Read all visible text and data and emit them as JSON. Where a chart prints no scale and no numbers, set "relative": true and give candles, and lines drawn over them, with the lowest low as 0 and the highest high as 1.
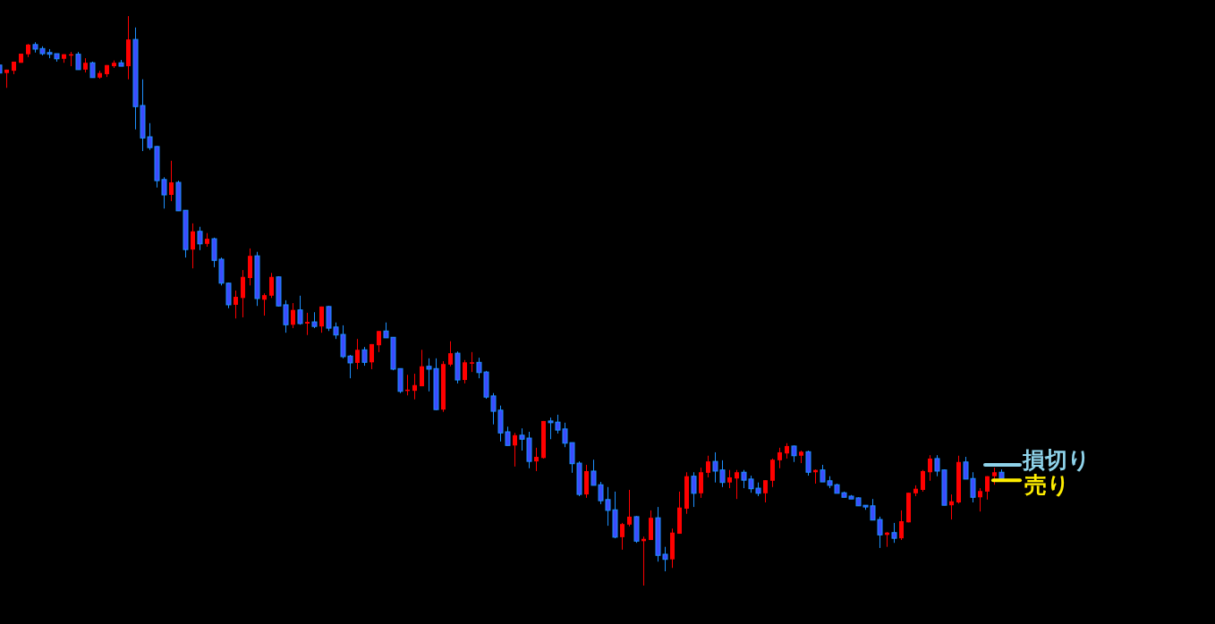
{
  "chart_data": {
    "type": "candlestick",
    "relative": true,
    "categories": [
      null,
      null,
      null,
      null,
      null,
      null,
      null,
      null,
      null,
      null,
      null,
      null,
      null,
      null,
      null,
      null,
      null,
      null,
      null,
      null,
      null,
      null,
      null,
      null,
      null,
      null,
      null,
      null,
      null,
      null,
      null,
      null,
      null,
      null,
      null,
      null,
      null,
      null,
      null,
      null,
      null,
      null,
      null,
      null,
      null,
      null,
      null,
      null,
      null,
      null,
      null,
      null,
      null,
      null,
      null,
      null,
      null,
      null,
      null,
      null,
      null,
      null,
      null,
      null,
      null,
      null,
      null,
      null,
      null,
      null,
      null,
      null,
      null,
      null,
      null,
      null,
      null,
      null,
      null,
      null,
      null,
      null,
      null,
      null,
      null,
      null,
      null,
      null,
      null,
      null,
      null,
      null,
      null,
      null,
      null,
      null,
      null,
      null,
      null,
      null,
      null,
      null,
      null,
      null,
      null,
      null,
      null,
      null,
      null,
      null,
      null,
      null,
      null,
      null,
      null,
      null,
      null,
      null,
      null,
      null,
      null,
      null,
      null,
      null,
      null,
      null,
      null,
      null,
      null,
      null,
      null,
      null,
      null,
      null,
      null,
      null,
      null,
      null,
      null,
      null,
      null
    ],
    "ohlc": [
      [
        0.914,
        0.915,
        0.9,
        0.9
      ],
      [
        0.9,
        0.906,
        0.874,
        0.906
      ],
      [
        0.904,
        0.92,
        0.898,
        0.92
      ],
      [
        0.918,
        0.934,
        0.918,
        0.934
      ],
      [
        0.933,
        0.951,
        0.928,
        0.95
      ],
      [
        0.95,
        0.954,
        0.936,
        0.942
      ],
      [
        0.943,
        0.947,
        0.931,
        0.934
      ],
      [
        0.936,
        0.942,
        0.926,
        0.933
      ],
      [
        0.934,
        0.934,
        0.92,
        0.925
      ],
      [
        0.925,
        0.933,
        0.918,
        0.933
      ],
      [
        0.931,
        0.937,
        0.912,
        0.933
      ],
      [
        0.933,
        0.937,
        0.906,
        0.906
      ],
      [
        0.906,
        0.926,
        0.901,
        0.918
      ],
      [
        0.918,
        0.92,
        0.892,
        0.892
      ],
      [
        0.892,
        0.904,
        0.89,
        0.9
      ],
      [
        0.898,
        0.914,
        0.893,
        0.914
      ],
      [
        0.912,
        0.922,
        0.909,
        0.918
      ],
      [
        0.918,
        0.923,
        0.912,
        0.912
      ],
      [
        0.912,
        1.0,
        0.889,
        0.959
      ],
      [
        0.959,
        0.98,
        0.801,
        0.841
      ],
      [
        0.843,
        0.889,
        0.763,
        0.786
      ],
      [
        0.788,
        0.812,
        0.765,
        0.769
      ],
      [
        0.771,
        0.772,
        0.699,
        0.711
      ],
      [
        0.713,
        0.717,
        0.662,
        0.686
      ],
      [
        0.686,
        0.746,
        0.675,
        0.708
      ],
      [
        0.708,
        0.711,
        0.658,
        0.658
      ],
      [
        0.659,
        0.659,
        0.576,
        0.59
      ],
      [
        0.59,
        0.636,
        0.557,
        0.622
      ],
      [
        0.622,
        0.63,
        0.589,
        0.6
      ],
      [
        0.6,
        0.619,
        0.595,
        0.609
      ],
      [
        0.609,
        0.611,
        0.559,
        0.571
      ],
      [
        0.573,
        0.576,
        0.527,
        0.531
      ],
      [
        0.531,
        0.532,
        0.487,
        0.493
      ],
      [
        0.493,
        0.518,
        0.469,
        0.507
      ],
      [
        0.505,
        0.554,
        0.471,
        0.542
      ],
      [
        0.54,
        0.592,
        0.527,
        0.579
      ],
      [
        0.579,
        0.586,
        0.491,
        0.504
      ],
      [
        0.502,
        0.513,
        0.474,
        0.51
      ],
      [
        0.509,
        0.549,
        0.505,
        0.542
      ],
      [
        0.542,
        0.543,
        0.49,
        0.491
      ],
      [
        0.493,
        0.501,
        0.444,
        0.458
      ],
      [
        0.458,
        0.496,
        0.452,
        0.484
      ],
      [
        0.484,
        0.509,
        0.458,
        0.46
      ],
      [
        0.46,
        0.479,
        0.44,
        0.463
      ],
      [
        0.463,
        0.48,
        0.452,
        0.455
      ],
      [
        0.455,
        0.49,
        0.444,
        0.49
      ],
      [
        0.49,
        0.491,
        0.447,
        0.452
      ],
      [
        0.454,
        0.462,
        0.433,
        0.44
      ],
      [
        0.441,
        0.457,
        0.399,
        0.402
      ],
      [
        0.403,
        0.405,
        0.364,
        0.391
      ],
      [
        0.391,
        0.433,
        0.38,
        0.414
      ],
      [
        0.414,
        0.419,
        0.386,
        0.392
      ],
      [
        0.392,
        0.424,
        0.38,
        0.424
      ],
      [
        0.422,
        0.447,
        0.41,
        0.447
      ],
      [
        0.447,
        0.462,
        0.435,
        0.435
      ],
      [
        0.436,
        0.436,
        0.378,
        0.38
      ],
      [
        0.381,
        0.381,
        0.338,
        0.341
      ],
      [
        0.342,
        0.37,
        0.334,
        0.344
      ],
      [
        0.342,
        0.372,
        0.327,
        0.352
      ],
      [
        0.35,
        0.414,
        0.35,
        0.385
      ],
      [
        0.385,
        0.399,
        0.341,
        0.38
      ],
      [
        0.381,
        0.399,
        0.308,
        0.309
      ],
      [
        0.309,
        0.394,
        0.305,
        0.389
      ],
      [
        0.388,
        0.429,
        0.385,
        0.408
      ],
      [
        0.408,
        0.411,
        0.355,
        0.361
      ],
      [
        0.361,
        0.396,
        0.355,
        0.392
      ],
      [
        0.391,
        0.41,
        0.375,
        0.392
      ],
      [
        0.392,
        0.4,
        0.364,
        0.374
      ],
      [
        0.375,
        0.377,
        0.328,
        0.331
      ],
      [
        0.333,
        0.338,
        0.283,
        0.306
      ],
      [
        0.308,
        0.316,
        0.253,
        0.268
      ],
      [
        0.27,
        0.279,
        0.246,
        0.246
      ],
      [
        0.246,
        0.268,
        0.209,
        0.264
      ],
      [
        0.264,
        0.276,
        0.237,
        0.257
      ],
      [
        0.259,
        0.27,
        0.206,
        0.218
      ],
      [
        0.218,
        0.242,
        0.201,
        0.226
      ],
      [
        0.224,
        0.289,
        0.223,
        0.289
      ],
      [
        0.289,
        0.295,
        0.257,
        0.286
      ],
      [
        0.287,
        0.3,
        0.267,
        0.273
      ],
      [
        0.275,
        0.286,
        0.243,
        0.25
      ],
      [
        0.251,
        0.251,
        0.198,
        0.214
      ],
      [
        0.215,
        0.218,
        0.157,
        0.16
      ],
      [
        0.16,
        0.212,
        0.154,
        0.201
      ],
      [
        0.201,
        0.221,
        0.176,
        0.176
      ],
      [
        0.177,
        0.182,
        0.143,
        0.149
      ],
      [
        0.151,
        0.173,
        0.105,
        0.132
      ],
      [
        0.133,
        0.165,
        0.083,
        0.085
      ],
      [
        0.085,
        0.11,
        0.063,
        0.108
      ],
      [
        0.107,
        0.168,
        0.104,
        0.121
      ],
      [
        0.121,
        0.122,
        0.075,
        0.078
      ],
      [
        0.078,
        0.086,
        0.0,
        0.082
      ],
      [
        0.08,
        0.132,
        0.08,
        0.119
      ],
      [
        0.119,
        0.138,
        0.042,
        0.053
      ],
      [
        0.055,
        0.068,
        0.025,
        0.046
      ],
      [
        0.046,
        0.1,
        0.031,
        0.093
      ],
      [
        0.091,
        0.165,
        0.091,
        0.137
      ],
      [
        0.135,
        0.199,
        0.126,
        0.192
      ],
      [
        0.192,
        0.199,
        0.138,
        0.162
      ],
      [
        0.162,
        0.207,
        0.154,
        0.199
      ],
      [
        0.198,
        0.228,
        0.19,
        0.218
      ],
      [
        0.218,
        0.234,
        0.181,
        0.201
      ],
      [
        0.203,
        0.22,
        0.173,
        0.181
      ],
      [
        0.181,
        0.203,
        0.171,
        0.19
      ],
      [
        0.188,
        0.203,
        0.152,
        0.199
      ],
      [
        0.199,
        0.203,
        0.171,
        0.185
      ],
      [
        0.187,
        0.193,
        0.163,
        0.17
      ],
      [
        0.171,
        0.181,
        0.157,
        0.162
      ],
      [
        0.162,
        0.185,
        0.146,
        0.185
      ],
      [
        0.184,
        0.223,
        0.173,
        0.221
      ],
      [
        0.22,
        0.242,
        0.206,
        0.234
      ],
      [
        0.232,
        0.25,
        0.223,
        0.245
      ],
      [
        0.245,
        0.246,
        0.217,
        0.228
      ],
      [
        0.228,
        0.237,
        0.215,
        0.235
      ],
      [
        0.235,
        0.237,
        0.193,
        0.199
      ],
      [
        0.199,
        0.204,
        0.179,
        0.203
      ],
      [
        0.203,
        0.212,
        0.182,
        0.182
      ],
      [
        0.184,
        0.192,
        0.171,
        0.176
      ],
      [
        0.177,
        0.179,
        0.162,
        0.162
      ],
      [
        0.163,
        0.165,
        0.155,
        0.155
      ],
      [
        0.157,
        0.159,
        0.152,
        0.152
      ],
      [
        0.154,
        0.155,
        0.14,
        0.14
      ],
      [
        0.141,
        0.141,
        0.133,
        0.138
      ],
      [
        0.14,
        0.152,
        0.115,
        0.115
      ],
      [
        0.116,
        0.121,
        0.066,
        0.089
      ],
      [
        0.089,
        0.094,
        0.068,
        0.093
      ],
      [
        0.093,
        0.11,
        0.075,
        0.083
      ],
      [
        0.083,
        0.132,
        0.08,
        0.113
      ],
      [
        0.111,
        0.163,
        0.111,
        0.163
      ],
      [
        0.162,
        0.176,
        0.157,
        0.17
      ],
      [
        0.168,
        0.203,
        0.165,
        0.201
      ],
      [
        0.199,
        0.229,
        0.184,
        0.223
      ],
      [
        0.223,
        0.229,
        0.192,
        0.201
      ],
      [
        0.203,
        0.204,
        0.141,
        0.141
      ],
      [
        0.141,
        0.16,
        0.116,
        0.148
      ],
      [
        0.146,
        0.228,
        0.144,
        0.217
      ],
      [
        0.217,
        0.226,
        0.187,
        0.187
      ],
      [
        0.188,
        0.199,
        0.146,
        0.155
      ],
      [
        0.155,
        0.171,
        0.13,
        0.166
      ],
      [
        0.165,
        0.192,
        0.151,
        0.192
      ],
      [
        0.192,
        0.207,
        0.177,
        0.199
      ],
      [
        0.199,
        0.204,
        0.188,
        0.188
      ]
    ],
    "ref_lines": [
      {
        "axis": "y",
        "value": 0.212,
        "label": "損切り",
        "color": "#8fd3ea"
      },
      {
        "axis": "y",
        "value": 0.185,
        "label": "売り",
        "color": "#ffee00"
      }
    ]
  }
}
